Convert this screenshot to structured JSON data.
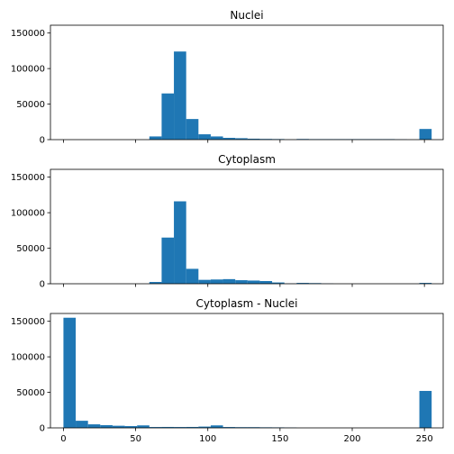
{
  "colors": {
    "bar": "#1f77b4",
    "axis": "#000000",
    "background": "#ffffff"
  },
  "chart_data": [
    {
      "type": "bar",
      "title": "Nuclei",
      "xlabel": "",
      "ylabel": "",
      "xlim": [
        -9,
        263
      ],
      "ylim": [
        0,
        161000
      ],
      "yticks": [
        0,
        50000,
        100000,
        150000
      ],
      "ytick_labels": [
        "0",
        "50000",
        "100000",
        "150000"
      ],
      "xticks": [
        0,
        50,
        100,
        150,
        200,
        250
      ],
      "xtick_labels": [
        "",
        "",
        "",
        "",
        "",
        ""
      ],
      "grid": false,
      "bin_edges": [
        0,
        8.5,
        17,
        25.5,
        34,
        42.5,
        51,
        59.5,
        68,
        76.5,
        85,
        93.5,
        102,
        110.5,
        119,
        127.5,
        136,
        144.5,
        153,
        161.5,
        170,
        178.5,
        187,
        195.5,
        204,
        212.5,
        221,
        229.5,
        238,
        246.5,
        255
      ],
      "values": [
        0,
        0,
        0,
        0,
        0,
        0,
        0,
        4500,
        65000,
        124000,
        29000,
        7500,
        4500,
        2500,
        2000,
        1300,
        1000,
        800,
        200,
        900,
        700,
        700,
        700,
        700,
        700,
        700,
        700,
        300,
        0,
        15000
      ]
    },
    {
      "type": "bar",
      "title": "Cytoplasm",
      "xlabel": "",
      "ylabel": "",
      "xlim": [
        -9,
        263
      ],
      "ylim": [
        0,
        161000
      ],
      "yticks": [
        0,
        50000,
        100000,
        150000
      ],
      "ytick_labels": [
        "0",
        "50000",
        "100000",
        "150000"
      ],
      "xticks": [
        0,
        50,
        100,
        150,
        200,
        250
      ],
      "xtick_labels": [
        "",
        "",
        "",
        "",
        "",
        ""
      ],
      "grid": false,
      "bin_edges": [
        0,
        8.5,
        17,
        25.5,
        34,
        42.5,
        51,
        59.5,
        68,
        76.5,
        85,
        93.5,
        102,
        110.5,
        119,
        127.5,
        136,
        144.5,
        153,
        161.5,
        170,
        178.5,
        187,
        195.5,
        204,
        212.5,
        221,
        229.5,
        238,
        246.5,
        255
      ],
      "values": [
        0,
        0,
        0,
        0,
        0,
        0,
        0,
        2500,
        65000,
        116000,
        21000,
        5500,
        6000,
        6500,
        5000,
        4500,
        3800,
        1800,
        300,
        1200,
        900,
        300,
        0,
        0,
        0,
        0,
        0,
        0,
        0,
        1200
      ]
    },
    {
      "type": "bar",
      "title": "Cytoplasm - Nuclei",
      "xlabel": "",
      "ylabel": "",
      "xlim": [
        -9,
        263
      ],
      "ylim": [
        0,
        161000
      ],
      "yticks": [
        0,
        50000,
        100000,
        150000
      ],
      "ytick_labels": [
        "0",
        "50000",
        "100000",
        "150000"
      ],
      "xticks": [
        0,
        50,
        100,
        150,
        200,
        250
      ],
      "xtick_labels": [
        "0",
        "50",
        "100",
        "150",
        "200",
        "250"
      ],
      "grid": false,
      "bin_edges": [
        0,
        8.5,
        17,
        25.5,
        34,
        42.5,
        51,
        59.5,
        68,
        76.5,
        85,
        93.5,
        102,
        110.5,
        119,
        127.5,
        136,
        144.5,
        153,
        161.5,
        170,
        178.5,
        187,
        195.5,
        204,
        212.5,
        221,
        229.5,
        238,
        246.5,
        255
      ],
      "values": [
        155000,
        10000,
        5000,
        3800,
        3000,
        2500,
        3500,
        1200,
        1300,
        1200,
        1300,
        1800,
        3500,
        1200,
        1000,
        1000,
        800,
        700,
        400,
        0,
        0,
        0,
        0,
        0,
        0,
        0,
        0,
        0,
        0,
        52000
      ]
    }
  ]
}
